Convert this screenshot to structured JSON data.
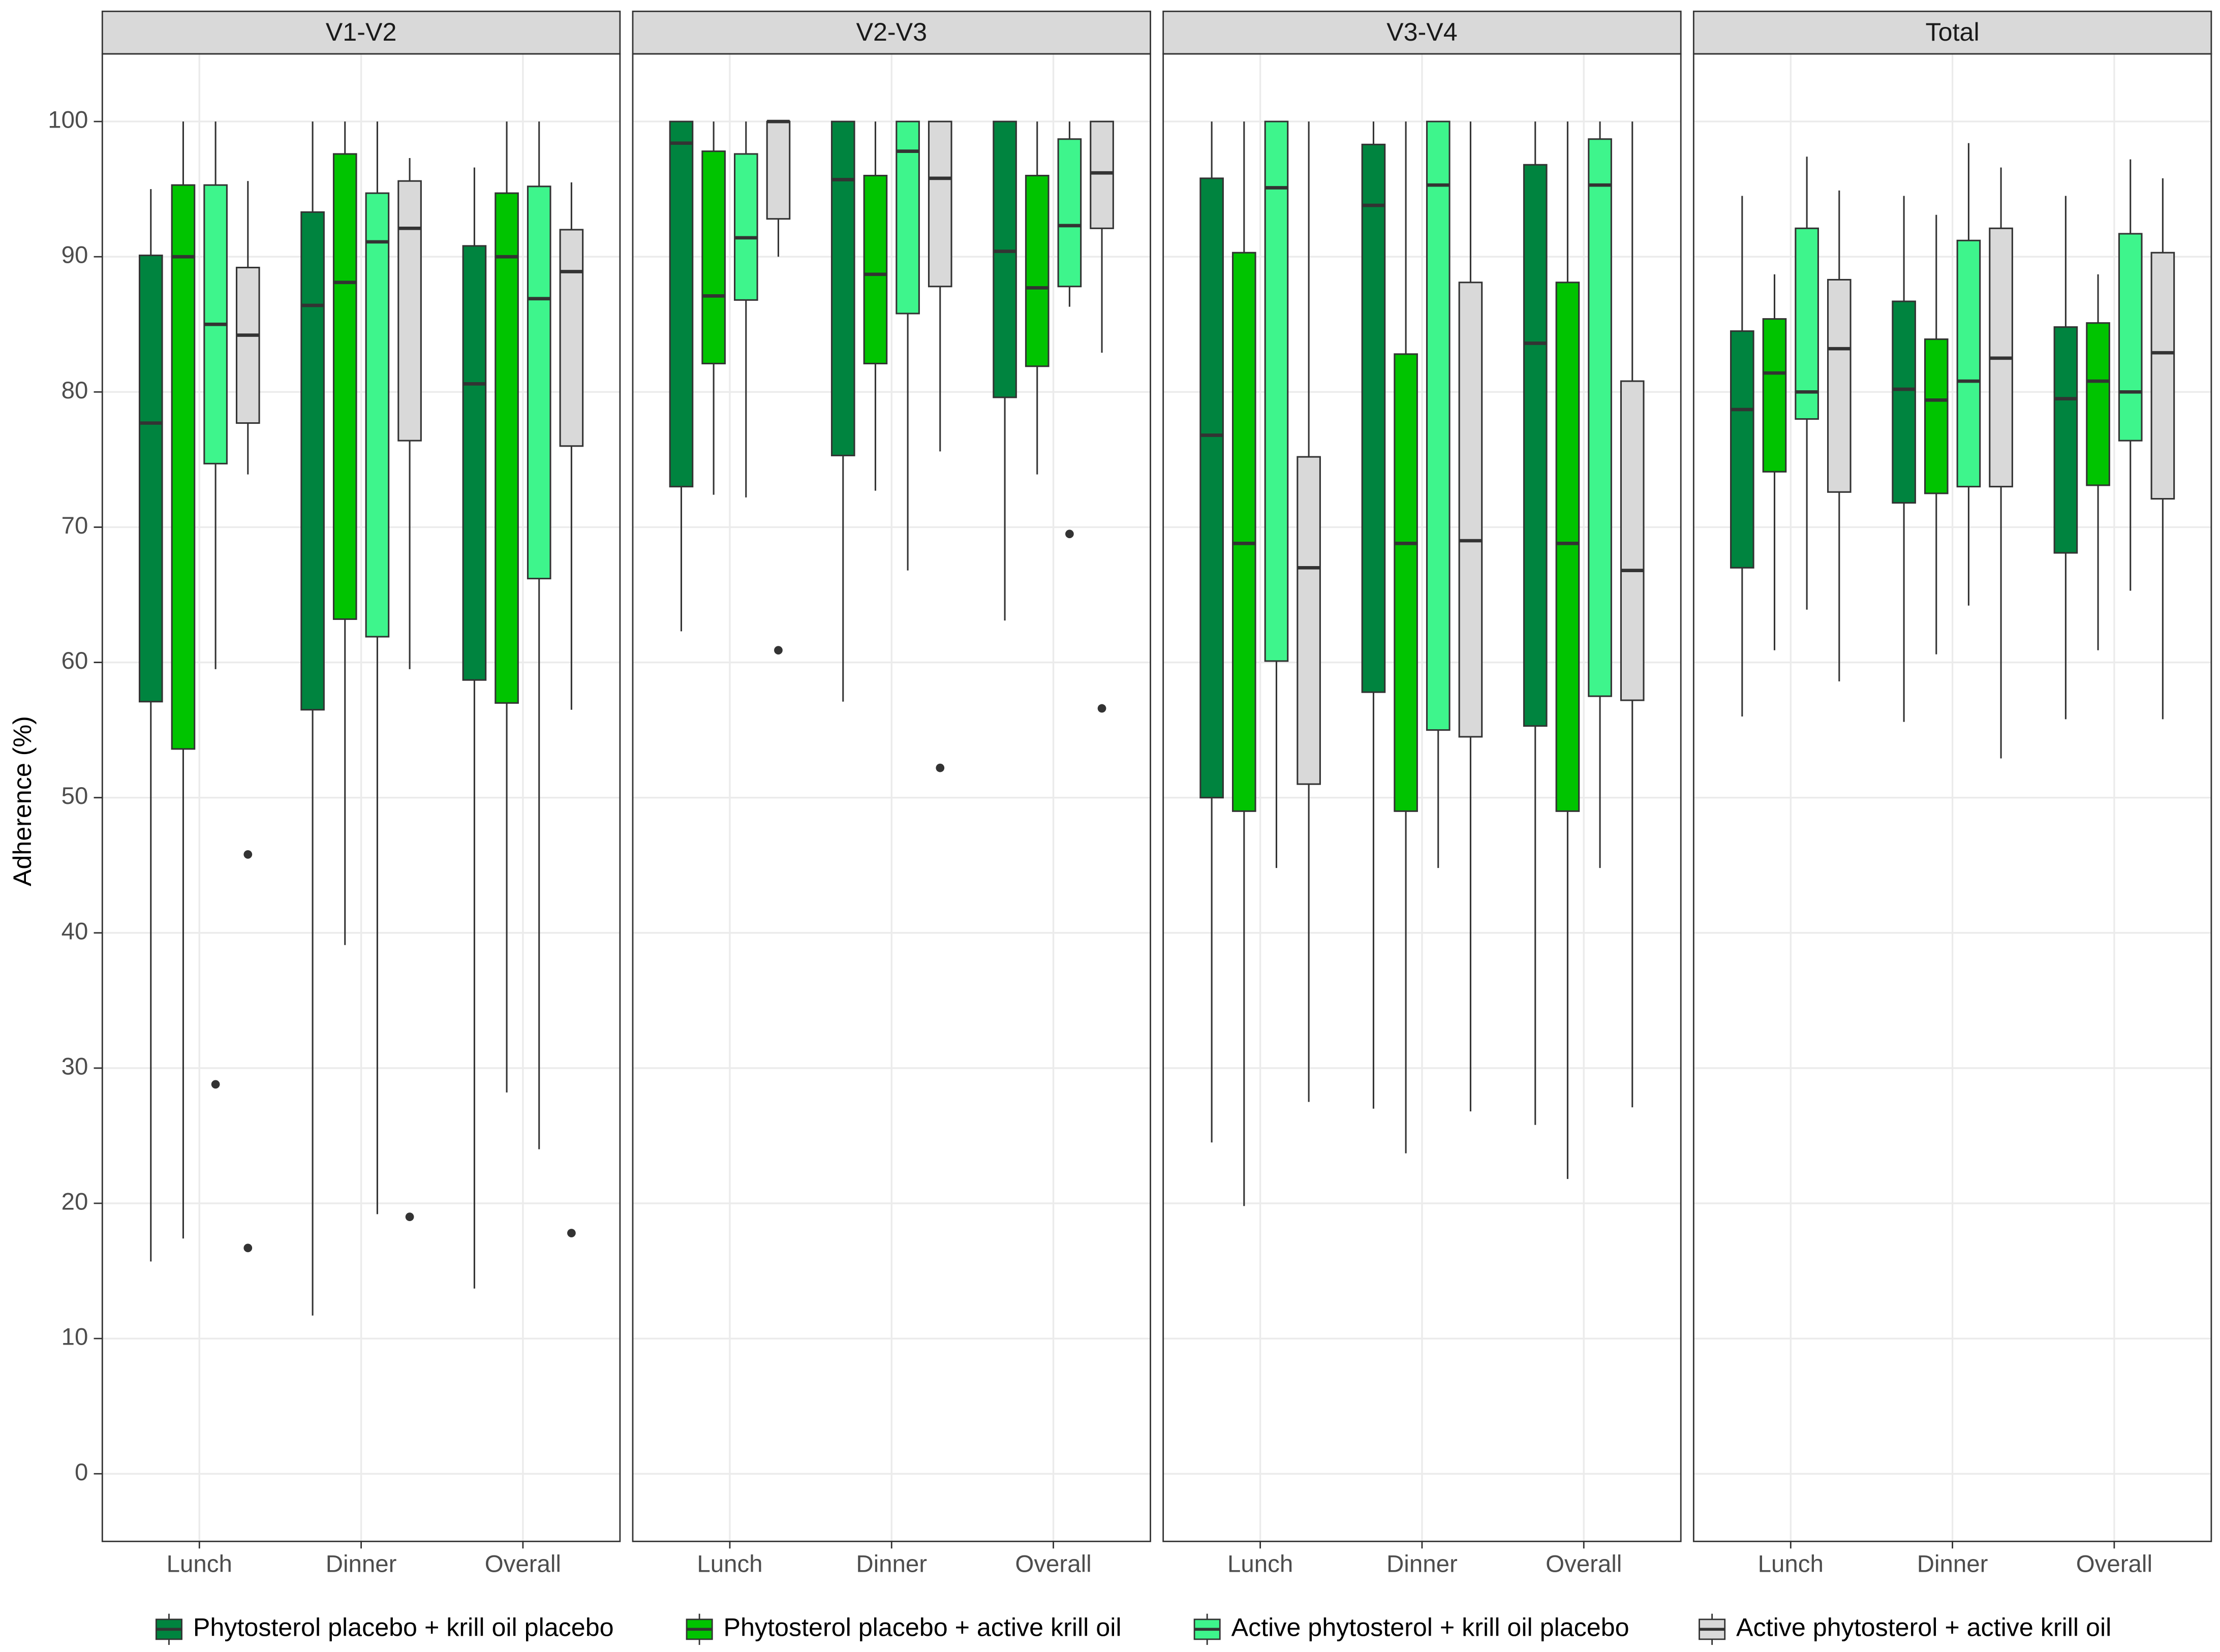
{
  "chart_data": {
    "type": "boxplot",
    "y_label": "Adherence (%)",
    "ylim": [
      -5,
      105
    ],
    "yticks": [
      0,
      10,
      20,
      30,
      40,
      50,
      60,
      70,
      80,
      90,
      100
    ],
    "grid": true,
    "legend": "bottom",
    "facets": [
      "V1-V2",
      "V2-V3",
      "V3-V4",
      "Total"
    ],
    "categories": [
      "Lunch",
      "Dinner",
      "Overall"
    ],
    "series": [
      {
        "name": "Phytosterol placebo + krill oil placebo",
        "color": "#00843f",
        "data": [
          [
            {
              "whisker_low": 15.7,
              "q1": 57.1,
              "median": 77.7,
              "q3": 90.1,
              "whisker_high": 95.0,
              "outliers": []
            },
            {
              "whisker_low": 11.7,
              "q1": 56.5,
              "median": 86.4,
              "q3": 93.3,
              "whisker_high": 100,
              "outliers": []
            },
            {
              "whisker_low": 13.7,
              "q1": 58.7,
              "median": 80.6,
              "q3": 90.8,
              "whisker_high": 96.6,
              "outliers": []
            }
          ],
          [
            {
              "whisker_low": 62.3,
              "q1": 73.0,
              "median": 98.4,
              "q3": 100,
              "whisker_high": 100,
              "outliers": []
            },
            {
              "whisker_low": 57.1,
              "q1": 75.3,
              "median": 95.7,
              "q3": 100,
              "whisker_high": 100,
              "outliers": []
            },
            {
              "whisker_low": 63.1,
              "q1": 79.6,
              "median": 90.4,
              "q3": 100,
              "whisker_high": 100,
              "outliers": []
            }
          ],
          [
            {
              "whisker_low": 24.5,
              "q1": 50.0,
              "median": 76.8,
              "q3": 95.8,
              "whisker_high": 100,
              "outliers": []
            },
            {
              "whisker_low": 27.0,
              "q1": 57.8,
              "median": 93.8,
              "q3": 98.3,
              "whisker_high": 100,
              "outliers": []
            },
            {
              "whisker_low": 25.8,
              "q1": 55.3,
              "median": 83.6,
              "q3": 96.8,
              "whisker_high": 100,
              "outliers": []
            }
          ],
          [
            {
              "whisker_low": 56.0,
              "q1": 67.0,
              "median": 78.7,
              "q3": 84.5,
              "whisker_high": 94.5,
              "outliers": []
            },
            {
              "whisker_low": 55.6,
              "q1": 71.8,
              "median": 80.2,
              "q3": 86.7,
              "whisker_high": 94.5,
              "outliers": []
            },
            {
              "whisker_low": 55.8,
              "q1": 68.1,
              "median": 79.5,
              "q3": 84.8,
              "whisker_high": 94.5,
              "outliers": []
            }
          ]
        ]
      },
      {
        "name": "Phytosterol placebo + active krill oil",
        "color": "#00c400",
        "data": [
          [
            {
              "whisker_low": 17.4,
              "q1": 53.6,
              "median": 90.0,
              "q3": 95.3,
              "whisker_high": 100,
              "outliers": []
            },
            {
              "whisker_low": 39.1,
              "q1": 63.2,
              "median": 88.1,
              "q3": 97.6,
              "whisker_high": 100,
              "outliers": []
            },
            {
              "whisker_low": 28.2,
              "q1": 57.0,
              "median": 90.0,
              "q3": 94.7,
              "whisker_high": 100,
              "outliers": []
            }
          ],
          [
            {
              "whisker_low": 72.4,
              "q1": 82.1,
              "median": 87.1,
              "q3": 97.8,
              "whisker_high": 100,
              "outliers": []
            },
            {
              "whisker_low": 72.7,
              "q1": 82.1,
              "median": 88.7,
              "q3": 96.0,
              "whisker_high": 100,
              "outliers": []
            },
            {
              "whisker_low": 73.9,
              "q1": 81.9,
              "median": 87.7,
              "q3": 96.0,
              "whisker_high": 100,
              "outliers": []
            }
          ],
          [
            {
              "whisker_low": 19.8,
              "q1": 49.0,
              "median": 68.8,
              "q3": 90.3,
              "whisker_high": 100,
              "outliers": []
            },
            {
              "whisker_low": 23.7,
              "q1": 49.0,
              "median": 68.8,
              "q3": 82.8,
              "whisker_high": 100,
              "outliers": []
            },
            {
              "whisker_low": 21.8,
              "q1": 49.0,
              "median": 68.8,
              "q3": 88.1,
              "whisker_high": 100,
              "outliers": []
            }
          ],
          [
            {
              "whisker_low": 60.9,
              "q1": 74.1,
              "median": 81.4,
              "q3": 85.4,
              "whisker_high": 88.7,
              "outliers": []
            },
            {
              "whisker_low": 60.6,
              "q1": 72.5,
              "median": 79.4,
              "q3": 83.9,
              "whisker_high": 93.1,
              "outliers": []
            },
            {
              "whisker_low": 60.9,
              "q1": 73.1,
              "median": 80.8,
              "q3": 85.1,
              "whisker_high": 88.7,
              "outliers": []
            }
          ]
        ]
      },
      {
        "name": "Active phytosterol + krill oil placebo",
        "color": "#3ef58c",
        "data": [
          [
            {
              "whisker_low": 59.5,
              "q1": 74.7,
              "median": 85.0,
              "q3": 95.3,
              "whisker_high": 100,
              "outliers": [
                28.8
              ]
            },
            {
              "whisker_low": 19.2,
              "q1": 61.9,
              "median": 91.1,
              "q3": 94.7,
              "whisker_high": 100,
              "outliers": []
            },
            {
              "whisker_low": 24.0,
              "q1": 66.2,
              "median": 86.9,
              "q3": 95.2,
              "whisker_high": 100,
              "outliers": []
            }
          ],
          [
            {
              "whisker_low": 72.2,
              "q1": 86.8,
              "median": 91.4,
              "q3": 97.6,
              "whisker_high": 100,
              "outliers": []
            },
            {
              "whisker_low": 66.8,
              "q1": 85.8,
              "median": 97.8,
              "q3": 100,
              "whisker_high": 100,
              "outliers": []
            },
            {
              "whisker_low": 86.3,
              "q1": 87.8,
              "median": 92.3,
              "q3": 98.7,
              "whisker_high": 100,
              "outliers": [
                69.5
              ]
            }
          ],
          [
            {
              "whisker_low": 44.8,
              "q1": 60.1,
              "median": 95.1,
              "q3": 100,
              "whisker_high": 100,
              "outliers": []
            },
            {
              "whisker_low": 44.8,
              "q1": 55.0,
              "median": 95.3,
              "q3": 100,
              "whisker_high": 100,
              "outliers": []
            },
            {
              "whisker_low": 44.8,
              "q1": 57.5,
              "median": 95.3,
              "q3": 98.7,
              "whisker_high": 100,
              "outliers": []
            }
          ],
          [
            {
              "whisker_low": 63.9,
              "q1": 78.0,
              "median": 80.0,
              "q3": 92.1,
              "whisker_high": 97.4,
              "outliers": []
            },
            {
              "whisker_low": 64.2,
              "q1": 73.0,
              "median": 80.8,
              "q3": 91.2,
              "whisker_high": 98.4,
              "outliers": []
            },
            {
              "whisker_low": 65.3,
              "q1": 76.4,
              "median": 80.0,
              "q3": 91.7,
              "whisker_high": 97.2,
              "outliers": []
            }
          ]
        ]
      },
      {
        "name": "Active phytosterol + active krill oil",
        "color": "#d9d9d9",
        "data": [
          [
            {
              "whisker_low": 73.9,
              "q1": 77.7,
              "median": 84.2,
              "q3": 89.2,
              "whisker_high": 95.6,
              "outliers": [
                45.8,
                16.7
              ]
            },
            {
              "whisker_low": 59.5,
              "q1": 76.4,
              "median": 92.1,
              "q3": 95.6,
              "whisker_high": 97.3,
              "outliers": [
                19.0
              ]
            },
            {
              "whisker_low": 56.5,
              "q1": 76.0,
              "median": 88.9,
              "q3": 92.0,
              "whisker_high": 95.5,
              "outliers": [
                17.8
              ]
            }
          ],
          [
            {
              "whisker_low": 90.0,
              "q1": 92.8,
              "median": 100,
              "q3": 100,
              "whisker_high": 100,
              "outliers": [
                60.9
              ]
            },
            {
              "whisker_low": 75.6,
              "q1": 87.8,
              "median": 95.8,
              "q3": 100,
              "whisker_high": 100,
              "outliers": [
                52.2
              ]
            },
            {
              "whisker_low": 82.9,
              "q1": 92.1,
              "median": 96.2,
              "q3": 100,
              "whisker_high": 100,
              "outliers": [
                56.6
              ]
            }
          ],
          [
            {
              "whisker_low": 27.5,
              "q1": 51.0,
              "median": 67.0,
              "q3": 75.2,
              "whisker_high": 100,
              "outliers": []
            },
            {
              "whisker_low": 26.8,
              "q1": 54.5,
              "median": 69.0,
              "q3": 88.1,
              "whisker_high": 100,
              "outliers": []
            },
            {
              "whisker_low": 27.1,
              "q1": 57.2,
              "median": 66.8,
              "q3": 80.8,
              "whisker_high": 100,
              "outliers": []
            }
          ],
          [
            {
              "whisker_low": 58.6,
              "q1": 72.6,
              "median": 83.2,
              "q3": 88.3,
              "whisker_high": 94.9,
              "outliers": []
            },
            {
              "whisker_low": 52.9,
              "q1": 73.0,
              "median": 82.5,
              "q3": 92.1,
              "whisker_high": 96.6,
              "outliers": []
            },
            {
              "whisker_low": 55.8,
              "q1": 72.1,
              "median": 82.9,
              "q3": 90.3,
              "whisker_high": 95.8,
              "outliers": []
            }
          ]
        ]
      }
    ]
  }
}
